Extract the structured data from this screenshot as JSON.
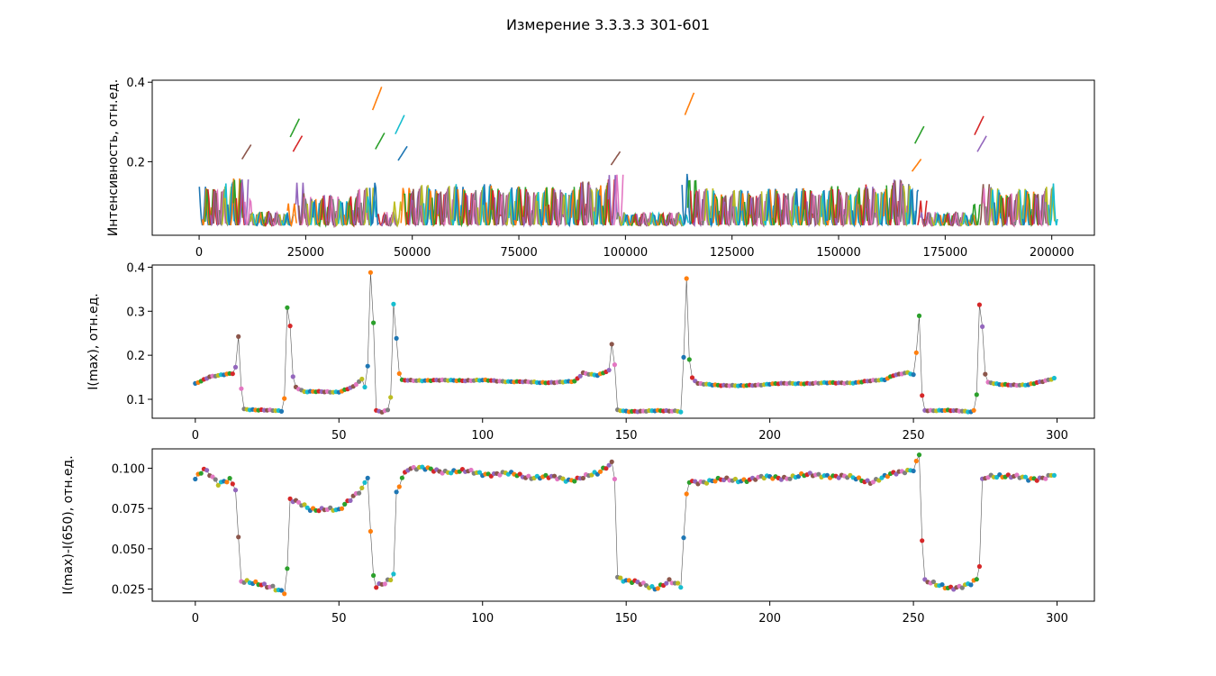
{
  "figure": {
    "title": "Измерение 3.3.3.3 301-601"
  },
  "colors": [
    "#1f77b4",
    "#ff7f0e",
    "#2ca02c",
    "#d62728",
    "#9467bd",
    "#8c564b",
    "#e377c2",
    "#7f7f7f",
    "#bcbd22",
    "#17becf"
  ],
  "chart_data": [
    {
      "type": "line",
      "ylabel": "Интенсивность, отн.ед.",
      "xlim": [
        -11000,
        210000
      ],
      "ylim": [
        0.015,
        0.405
      ],
      "xticks": [
        0,
        25000,
        50000,
        75000,
        100000,
        125000,
        150000,
        175000,
        200000
      ],
      "xtick_labels": [
        "0",
        "25000",
        "50000",
        "75000",
        "100000",
        "125000",
        "150000",
        "175000",
        "200000"
      ],
      "yticks": [
        0.2,
        0.4
      ],
      "ytick_labels": [
        "0.2",
        "0.4"
      ],
      "segments_count": 300,
      "segment_span": 666,
      "note_series": "each of 300 spectra drawn as a short trace; baseline ~0.03-0.05, peak equals panel-2 I(max)"
    },
    {
      "type": "line-scatter",
      "ylabel": "I(max), отн.ед.",
      "xlim": [
        -15,
        313
      ],
      "ylim": [
        0.057,
        0.405
      ],
      "xticks": [
        0,
        50,
        100,
        150,
        200,
        250,
        300
      ],
      "xtick_labels": [
        "0",
        "50",
        "100",
        "150",
        "200",
        "250",
        "300"
      ],
      "yticks": [
        0.1,
        0.2,
        0.3,
        0.4
      ],
      "ytick_labels": [
        "0.1",
        "0.2",
        "0.3",
        "0.4"
      ],
      "keypoints": [
        [
          0,
          0.135
        ],
        [
          5,
          0.152
        ],
        [
          13,
          0.158
        ],
        [
          14,
          0.172
        ],
        [
          15,
          0.242
        ],
        [
          16,
          0.125
        ],
        [
          17,
          0.078
        ],
        [
          22,
          0.076
        ],
        [
          30,
          0.073
        ],
        [
          31,
          0.102
        ],
        [
          32,
          0.308
        ],
        [
          33,
          0.268
        ],
        [
          34,
          0.152
        ],
        [
          35,
          0.128
        ],
        [
          38,
          0.117
        ],
        [
          50,
          0.117
        ],
        [
          55,
          0.128
        ],
        [
          58,
          0.145
        ],
        [
          59,
          0.128
        ],
        [
          60,
          0.175
        ],
        [
          61,
          0.388
        ],
        [
          62,
          0.275
        ],
        [
          63,
          0.075
        ],
        [
          65,
          0.072
        ],
        [
          67,
          0.076
        ],
        [
          68,
          0.105
        ],
        [
          69,
          0.315
        ],
        [
          70,
          0.238
        ],
        [
          71,
          0.158
        ],
        [
          72,
          0.143
        ],
        [
          80,
          0.143
        ],
        [
          100,
          0.143
        ],
        [
          120,
          0.138
        ],
        [
          132,
          0.14
        ],
        [
          135,
          0.16
        ],
        [
          140,
          0.155
        ],
        [
          144,
          0.165
        ],
        [
          145,
          0.225
        ],
        [
          146,
          0.178
        ],
        [
          147,
          0.075
        ],
        [
          150,
          0.073
        ],
        [
          168,
          0.074
        ],
        [
          169,
          0.072
        ],
        [
          170,
          0.195
        ],
        [
          171,
          0.375
        ],
        [
          172,
          0.19
        ],
        [
          173,
          0.148
        ],
        [
          175,
          0.135
        ],
        [
          190,
          0.13
        ],
        [
          200,
          0.135
        ],
        [
          230,
          0.138
        ],
        [
          240,
          0.145
        ],
        [
          243,
          0.155
        ],
        [
          248,
          0.16
        ],
        [
          250,
          0.155
        ],
        [
          251,
          0.205
        ],
        [
          252,
          0.29
        ],
        [
          253,
          0.108
        ],
        [
          254,
          0.075
        ],
        [
          260,
          0.075
        ],
        [
          270,
          0.072
        ],
        [
          271,
          0.075
        ],
        [
          272,
          0.112
        ],
        [
          273,
          0.315
        ],
        [
          274,
          0.265
        ],
        [
          275,
          0.158
        ],
        [
          276,
          0.138
        ],
        [
          280,
          0.133
        ],
        [
          290,
          0.133
        ],
        [
          295,
          0.14
        ],
        [
          299,
          0.148
        ]
      ]
    },
    {
      "type": "line-scatter",
      "ylabel": "I(max)-I(650), отн.ед.",
      "xlim": [
        -15,
        313
      ],
      "ylim": [
        0.0175,
        0.112
      ],
      "xticks": [
        0,
        50,
        100,
        150,
        200,
        250,
        300
      ],
      "xtick_labels": [
        "0",
        "50",
        "100",
        "150",
        "200",
        "250",
        "300"
      ],
      "yticks": [
        0.025,
        0.05,
        0.075,
        0.1
      ],
      "ytick_labels": [
        "0.025",
        "0.050",
        "0.075",
        "0.100"
      ],
      "keypoints": [
        [
          0,
          0.094
        ],
        [
          3,
          0.099
        ],
        [
          8,
          0.09
        ],
        [
          12,
          0.094
        ],
        [
          14,
          0.088
        ],
        [
          15,
          0.057
        ],
        [
          16,
          0.03
        ],
        [
          20,
          0.028
        ],
        [
          27,
          0.027
        ],
        [
          29,
          0.025
        ],
        [
          31,
          0.023
        ],
        [
          32,
          0.037
        ],
        [
          33,
          0.08
        ],
        [
          40,
          0.075
        ],
        [
          45,
          0.075
        ],
        [
          50,
          0.073
        ],
        [
          55,
          0.083
        ],
        [
          58,
          0.088
        ],
        [
          60,
          0.095
        ],
        [
          61,
          0.06
        ],
        [
          62,
          0.033
        ],
        [
          63,
          0.026
        ],
        [
          66,
          0.028
        ],
        [
          68,
          0.031
        ],
        [
          69,
          0.035
        ],
        [
          70,
          0.085
        ],
        [
          72,
          0.095
        ],
        [
          74,
          0.1
        ],
        [
          90,
          0.098
        ],
        [
          110,
          0.096
        ],
        [
          130,
          0.093
        ],
        [
          140,
          0.096
        ],
        [
          145,
          0.104
        ],
        [
          146,
          0.095
        ],
        [
          147,
          0.033
        ],
        [
          150,
          0.03
        ],
        [
          160,
          0.026
        ],
        [
          165,
          0.03
        ],
        [
          169,
          0.026
        ],
        [
          170,
          0.056
        ],
        [
          171,
          0.083
        ],
        [
          172,
          0.092
        ],
        [
          180,
          0.092
        ],
        [
          190,
          0.093
        ],
        [
          200,
          0.094
        ],
        [
          220,
          0.096
        ],
        [
          235,
          0.092
        ],
        [
          245,
          0.097
        ],
        [
          250,
          0.1
        ],
        [
          252,
          0.109
        ],
        [
          253,
          0.056
        ],
        [
          254,
          0.03
        ],
        [
          258,
          0.027
        ],
        [
          262,
          0.026
        ],
        [
          270,
          0.028
        ],
        [
          272,
          0.03
        ],
        [
          273,
          0.039
        ],
        [
          274,
          0.092
        ],
        [
          276,
          0.095
        ],
        [
          280,
          0.096
        ],
        [
          290,
          0.093
        ],
        [
          299,
          0.096
        ]
      ]
    }
  ]
}
